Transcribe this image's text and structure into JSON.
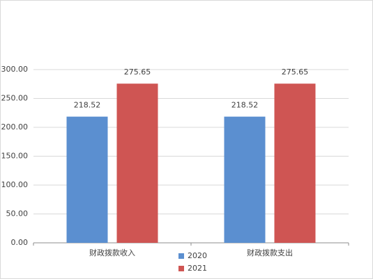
{
  "chart_data": {
    "type": "bar",
    "categories": [
      "财政拨款收入",
      "财政拨款支出"
    ],
    "series": [
      {
        "name": "2020",
        "color": "#5b8fd0",
        "values": [
          218.52,
          218.52
        ]
      },
      {
        "name": "2021",
        "color": "#cf5553",
        "values": [
          275.65,
          275.65
        ]
      }
    ],
    "ylim": [
      0,
      300
    ],
    "yticks": [
      {
        "value": 0,
        "label": "0.00"
      },
      {
        "value": 50,
        "label": "50.00"
      },
      {
        "value": 100,
        "label": "100.00"
      },
      {
        "value": 150,
        "label": "150.00"
      },
      {
        "value": 200,
        "label": "200.00"
      },
      {
        "value": 250,
        "label": "250.00"
      },
      {
        "value": 300,
        "label": "300.00"
      }
    ],
    "grid": true
  }
}
